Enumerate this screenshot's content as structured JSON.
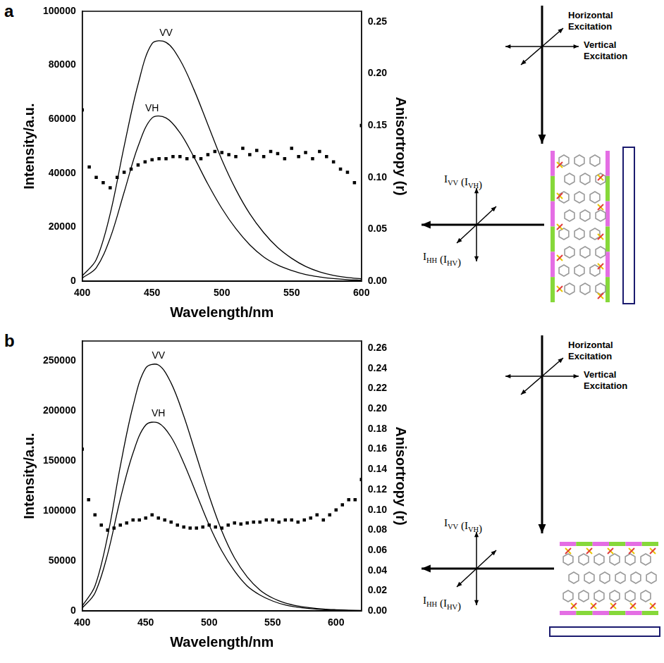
{
  "chart_data": [
    {
      "panel": "a",
      "type": "line",
      "x_label": "Wavelength/nm",
      "y_label": "Intensity/a.u.",
      "y2_label": "Anisortropy (r)",
      "xlim": [
        400,
        600
      ],
      "xticks": [
        400,
        450,
        500,
        550,
        600
      ],
      "ylim": [
        0,
        100000
      ],
      "yticks": [
        0,
        20000,
        40000,
        60000,
        80000,
        100000
      ],
      "y2lim": [
        0,
        0.26
      ],
      "y2ticks": [
        {
          "value": 0,
          "label": "0.00"
        },
        {
          "value": 0.05,
          "label": "0.05"
        },
        {
          "value": 0.1,
          "label": "0.10"
        },
        {
          "value": 0.15,
          "label": "0.15"
        },
        {
          "value": 0.2,
          "label": "0.20"
        },
        {
          "value": 0.25,
          "label": "0.25"
        }
      ],
      "grid": false,
      "series": [
        {
          "name": "VV",
          "type": "line",
          "color": "#000000",
          "x": [
            400,
            410,
            420,
            430,
            440,
            450,
            460,
            470,
            480,
            490,
            500,
            510,
            520,
            530,
            540,
            550,
            560,
            570,
            580,
            590,
            600
          ],
          "values": [
            2000,
            8000,
            25000,
            50000,
            73000,
            88000,
            88500,
            82000,
            71000,
            58000,
            45000,
            34000,
            25000,
            18000,
            12500,
            8500,
            5500,
            3500,
            2200,
            1400,
            900
          ]
        },
        {
          "name": "VH",
          "type": "line",
          "color": "#000000",
          "x": [
            400,
            410,
            420,
            430,
            440,
            450,
            460,
            470,
            480,
            490,
            500,
            510,
            520,
            530,
            540,
            550,
            560,
            570,
            580,
            590,
            600
          ],
          "values": [
            1200,
            5000,
            16000,
            33000,
            50000,
            60500,
            60500,
            55000,
            46000,
            36000,
            27000,
            19500,
            13500,
            9000,
            6000,
            4000,
            2500,
            1600,
            1000,
            600,
            400
          ]
        },
        {
          "type": "scatter",
          "marker": "square",
          "color": "#000000",
          "axis": "y2",
          "x": [
            400,
            405,
            410,
            415,
            420,
            425,
            430,
            435,
            440,
            445,
            450,
            455,
            460,
            465,
            470,
            475,
            480,
            485,
            490,
            495,
            500,
            505,
            510,
            515,
            520,
            525,
            530,
            535,
            540,
            545,
            550,
            555,
            560,
            565,
            570,
            575,
            580,
            585,
            590,
            595,
            600
          ],
          "values": [
            0.165,
            0.11,
            0.1,
            0.095,
            0.09,
            0.1,
            0.105,
            0.108,
            0.112,
            0.115,
            0.117,
            0.118,
            0.118,
            0.12,
            0.12,
            0.118,
            0.12,
            0.118,
            0.122,
            0.125,
            0.124,
            0.122,
            0.12,
            0.128,
            0.122,
            0.126,
            0.12,
            0.125,
            0.123,
            0.118,
            0.128,
            0.12,
            0.124,
            0.118,
            0.125,
            0.12,
            0.115,
            0.108,
            0.105,
            0.095,
            0.15
          ]
        }
      ]
    },
    {
      "panel": "b",
      "type": "line",
      "x_label": "Wavelength/nm",
      "y_label": "Intensity/a.u.",
      "y2_label": "Anisortropy (r)",
      "xlim": [
        400,
        620
      ],
      "xticks": [
        400,
        450,
        500,
        550,
        600
      ],
      "ylim": [
        0,
        270000
      ],
      "yticks": [
        0,
        50000,
        100000,
        150000,
        200000,
        250000
      ],
      "y2lim": [
        0,
        0.267
      ],
      "y2ticks": [
        {
          "value": 0,
          "label": "0.00"
        },
        {
          "value": 0.02,
          "label": "0.02"
        },
        {
          "value": 0.04,
          "label": "0.04"
        },
        {
          "value": 0.06,
          "label": "0.06"
        },
        {
          "value": 0.08,
          "label": "0.08"
        },
        {
          "value": 0.1,
          "label": "0.10"
        },
        {
          "value": 0.12,
          "label": "0.12"
        },
        {
          "value": 0.14,
          "label": "0.14"
        },
        {
          "value": 0.16,
          "label": "0.16"
        },
        {
          "value": 0.18,
          "label": "0.18"
        },
        {
          "value": 0.2,
          "label": "0.20"
        },
        {
          "value": 0.22,
          "label": "0.22"
        },
        {
          "value": 0.24,
          "label": "0.24"
        },
        {
          "value": 0.26,
          "label": "0.26"
        }
      ],
      "grid": false,
      "series": [
        {
          "name": "VV",
          "type": "line",
          "color": "#000000",
          "x": [
            400,
            410,
            420,
            430,
            440,
            450,
            460,
            470,
            480,
            490,
            500,
            510,
            520,
            530,
            540,
            550,
            560,
            570,
            580,
            590,
            600,
            610,
            620
          ],
          "values": [
            5000,
            25000,
            75000,
            145000,
            205000,
            243000,
            246000,
            228000,
            195000,
            155000,
            115000,
            80000,
            53000,
            34000,
            21000,
            13000,
            8000,
            5000,
            3200,
            2000,
            1300,
            800,
            500
          ]
        },
        {
          "name": "VH",
          "type": "line",
          "color": "#000000",
          "x": [
            400,
            410,
            420,
            430,
            440,
            450,
            460,
            470,
            480,
            490,
            500,
            510,
            520,
            530,
            540,
            550,
            560,
            570,
            580,
            590,
            600,
            610,
            620
          ],
          "values": [
            3000,
            18000,
            57000,
            112000,
            158000,
            186000,
            188000,
            174000,
            148000,
            117000,
            86000,
            60000,
            40000,
            25000,
            16000,
            10000,
            6000,
            3800,
            2400,
            1500,
            1000,
            600,
            400
          ]
        },
        {
          "type": "scatter",
          "marker": "square",
          "color": "#000000",
          "axis": "y2",
          "x": [
            400,
            405,
            410,
            415,
            420,
            425,
            430,
            435,
            440,
            445,
            450,
            455,
            460,
            465,
            470,
            475,
            480,
            485,
            490,
            495,
            500,
            505,
            510,
            515,
            520,
            525,
            530,
            535,
            540,
            545,
            550,
            555,
            560,
            565,
            570,
            575,
            580,
            585,
            590,
            595,
            600,
            605,
            610,
            615,
            620
          ],
          "values": [
            0.16,
            0.11,
            0.095,
            0.085,
            0.08,
            0.082,
            0.085,
            0.087,
            0.09,
            0.09,
            0.092,
            0.095,
            0.092,
            0.09,
            0.088,
            0.085,
            0.083,
            0.082,
            0.082,
            0.083,
            0.085,
            0.083,
            0.082,
            0.085,
            0.087,
            0.086,
            0.087,
            0.088,
            0.088,
            0.09,
            0.09,
            0.088,
            0.09,
            0.09,
            0.088,
            0.09,
            0.092,
            0.095,
            0.09,
            0.095,
            0.1,
            0.105,
            0.11,
            0.11,
            0.13
          ]
        }
      ]
    }
  ],
  "schematics": [
    {
      "horizontal_excitation": "Horizontal Excitation",
      "vertical_excitation": "Vertical Excitation",
      "emission_vertical": "IVV (IVH)",
      "emission_horizontal": "IHH (IHV)",
      "sample": "vertical"
    },
    {
      "horizontal_excitation": "Horizontal Excitation",
      "vertical_excitation": "Vertical Excitation",
      "emission_vertical": "IVV (IVH)",
      "emission_horizontal": "IHH (IHV)",
      "sample": "horizontal"
    }
  ]
}
